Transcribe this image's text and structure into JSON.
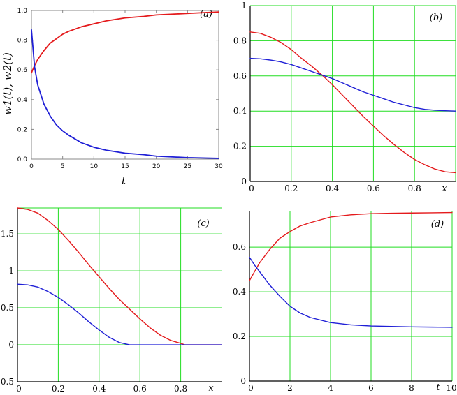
{
  "chart_data": [
    {
      "panel": "(a)",
      "type": "line",
      "xlabel": "t",
      "ylabel": "w1(t), w2(t)",
      "xlim": [
        0,
        30
      ],
      "ylim": [
        0,
        1.0
      ],
      "xticks": [
        "0",
        "5",
        "10",
        "15",
        "20",
        "25",
        "30"
      ],
      "yticks": [
        "0.0",
        "0.2",
        "0.4",
        "0.6",
        "0.8",
        "1.0"
      ],
      "grid": false,
      "series": [
        {
          "color": "#e41a1c",
          "x": [
            0,
            0.5,
            1,
            2,
            3,
            4,
            5,
            6,
            8,
            10,
            12,
            15,
            18,
            20,
            25,
            30
          ],
          "y": [
            0.58,
            0.63,
            0.67,
            0.73,
            0.78,
            0.81,
            0.84,
            0.86,
            0.89,
            0.91,
            0.93,
            0.95,
            0.96,
            0.97,
            0.98,
            0.99
          ]
        },
        {
          "color": "#1f1fd6",
          "x": [
            0,
            0.5,
            1,
            2,
            3,
            4,
            5,
            6,
            8,
            10,
            12,
            15,
            18,
            20,
            25,
            30
          ],
          "y": [
            0.87,
            0.62,
            0.5,
            0.37,
            0.29,
            0.23,
            0.19,
            0.16,
            0.11,
            0.08,
            0.06,
            0.04,
            0.03,
            0.02,
            0.01,
            0.005
          ]
        }
      ]
    },
    {
      "panel": "(b)",
      "type": "line",
      "xlabel": "x",
      "xlim": [
        0,
        1
      ],
      "ylim": [
        0,
        1
      ],
      "xticks": [
        "0",
        "0.2",
        "0.4",
        "0.6",
        "0.8"
      ],
      "yticks": [
        "0",
        "0.2",
        "0.4",
        "0.6",
        "0.8",
        "1"
      ],
      "grid": true,
      "series": [
        {
          "color": "#e41a1c",
          "x": [
            0,
            0.05,
            0.1,
            0.15,
            0.2,
            0.25,
            0.3,
            0.35,
            0.4,
            0.45,
            0.5,
            0.55,
            0.6,
            0.65,
            0.7,
            0.75,
            0.8,
            0.85,
            0.9,
            0.95,
            1.0
          ],
          "y": [
            0.85,
            0.842,
            0.82,
            0.79,
            0.75,
            0.7,
            0.655,
            0.605,
            0.55,
            0.49,
            0.43,
            0.37,
            0.315,
            0.26,
            0.21,
            0.165,
            0.125,
            0.095,
            0.07,
            0.055,
            0.05
          ]
        },
        {
          "color": "#1f1fd6",
          "x": [
            0,
            0.05,
            0.1,
            0.15,
            0.2,
            0.25,
            0.3,
            0.35,
            0.4,
            0.45,
            0.5,
            0.55,
            0.6,
            0.65,
            0.7,
            0.75,
            0.8,
            0.85,
            0.9,
            0.95,
            1.0
          ],
          "y": [
            0.7,
            0.697,
            0.69,
            0.68,
            0.665,
            0.645,
            0.625,
            0.605,
            0.585,
            0.56,
            0.535,
            0.51,
            0.49,
            0.47,
            0.45,
            0.435,
            0.42,
            0.41,
            0.405,
            0.402,
            0.4
          ]
        }
      ]
    },
    {
      "panel": "(c)",
      "type": "line",
      "xlabel": "x",
      "xlim": [
        0,
        1
      ],
      "ylim": [
        -0.5,
        1.85
      ],
      "xticks": [
        "0",
        "0.2",
        "0.4",
        "0.6",
        "0.8"
      ],
      "yticks": [
        "-0.5",
        "0",
        "0.5",
        "1",
        "1.5"
      ],
      "grid": true,
      "series": [
        {
          "color": "#e41a1c",
          "x": [
            0,
            0.05,
            0.1,
            0.15,
            0.2,
            0.25,
            0.3,
            0.35,
            0.4,
            0.45,
            0.5,
            0.55,
            0.6,
            0.65,
            0.7,
            0.75,
            0.8,
            0.82,
            0.9,
            1.0
          ],
          "y": [
            1.85,
            1.83,
            1.78,
            1.68,
            1.56,
            1.41,
            1.25,
            1.08,
            0.92,
            0.76,
            0.61,
            0.48,
            0.35,
            0.23,
            0.13,
            0.06,
            0.02,
            0.0,
            0.0,
            0.0
          ]
        },
        {
          "color": "#1f1fd6",
          "x": [
            0,
            0.05,
            0.1,
            0.15,
            0.2,
            0.25,
            0.3,
            0.35,
            0.4,
            0.45,
            0.5,
            0.55,
            0.6,
            0.8,
            1.0
          ],
          "y": [
            0.82,
            0.81,
            0.78,
            0.72,
            0.64,
            0.54,
            0.43,
            0.31,
            0.2,
            0.1,
            0.03,
            0.0,
            0.0,
            0.0,
            0.0
          ]
        }
      ]
    },
    {
      "panel": "(d)",
      "type": "line",
      "xlabel": "t",
      "xlim": [
        0,
        10
      ],
      "ylim": [
        0,
        0.76
      ],
      "xticks": [
        "0",
        "2",
        "4",
        "6",
        "8",
        "10"
      ],
      "yticks": [
        "0",
        "0.2",
        "0.4",
        "0.6"
      ],
      "grid": true,
      "series": [
        {
          "color": "#e41a1c",
          "x": [
            0,
            0.25,
            0.5,
            1,
            1.5,
            2,
            2.5,
            3,
            4,
            5,
            6,
            7,
            8,
            9,
            10
          ],
          "y": [
            0.45,
            0.49,
            0.53,
            0.59,
            0.64,
            0.67,
            0.695,
            0.71,
            0.735,
            0.745,
            0.75,
            0.752,
            0.753,
            0.754,
            0.755
          ]
        },
        {
          "color": "#1f1fd6",
          "x": [
            0,
            0.25,
            0.5,
            1,
            1.5,
            2,
            2.5,
            3,
            4,
            5,
            6,
            7,
            8,
            9,
            10
          ],
          "y": [
            0.555,
            0.52,
            0.49,
            0.43,
            0.38,
            0.335,
            0.305,
            0.285,
            0.262,
            0.252,
            0.247,
            0.245,
            0.243,
            0.242,
            0.241
          ]
        }
      ]
    }
  ]
}
